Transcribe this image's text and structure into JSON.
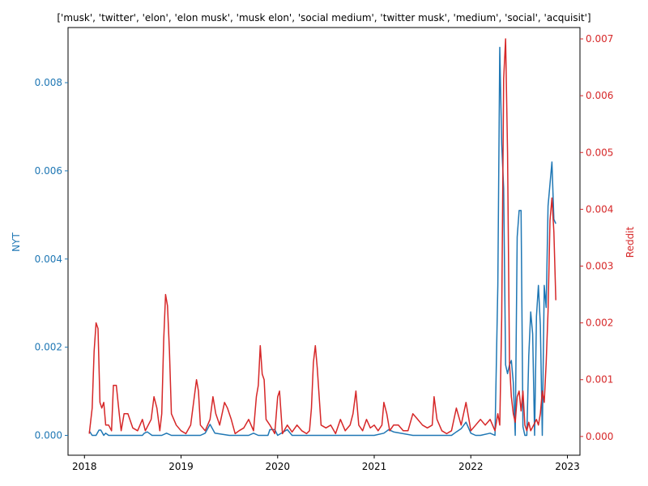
{
  "chart_data": {
    "type": "line",
    "title": "['musk', 'twitter', 'elon', 'elon musk', 'musk elon', 'social medium', 'twitter musk', 'medium', 'social', 'acquisit']",
    "xlabel": "",
    "x_ticks": [
      "2018",
      "2019",
      "2020",
      "2021",
      "2022",
      "2023"
    ],
    "xlim": [
      2017.83,
      2023.13
    ],
    "grid": false,
    "axes": {
      "left": {
        "label": "NYT",
        "color": "#1f77b4",
        "ylim": [
          -0.00045,
          0.00925
        ],
        "ticks": [
          "0.000",
          "0.002",
          "0.004",
          "0.006",
          "0.008"
        ]
      },
      "right": {
        "label": "Reddit",
        "color": "#d62728",
        "ylim": [
          -0.00033,
          0.0072
        ],
        "ticks": [
          "0.000",
          "0.001",
          "0.002",
          "0.003",
          "0.004",
          "0.005",
          "0.006",
          "0.007"
        ]
      }
    },
    "series": [
      {
        "axis": "left",
        "color": "#1f77b4",
        "x": [
          2018.05,
          2018.08,
          2018.12,
          2018.15,
          2018.17,
          2018.2,
          2018.22,
          2018.25,
          2018.3,
          2018.4,
          2018.5,
          2018.6,
          2018.62,
          2018.65,
          2018.7,
          2018.8,
          2018.85,
          2018.9,
          2019.0,
          2019.2,
          2019.25,
          2019.3,
          2019.35,
          2019.5,
          2019.6,
          2019.7,
          2019.75,
          2019.8,
          2019.9,
          2019.92,
          2019.97,
          2020.0,
          2020.1,
          2020.15,
          2020.2,
          2020.3,
          2020.5,
          2020.7,
          2020.9,
          2021.0,
          2021.1,
          2021.15,
          2021.2,
          2021.4,
          2021.5,
          2021.6,
          2021.7,
          2021.8,
          2021.85,
          2021.9,
          2021.95,
          2022.0,
          2022.05,
          2022.1,
          2022.2,
          2022.25,
          2022.28,
          2022.3,
          2022.32,
          2022.34,
          2022.36,
          2022.38,
          2022.4,
          2022.42,
          2022.44,
          2022.46,
          2022.48,
          2022.5,
          2022.52,
          2022.54,
          2022.56,
          2022.58,
          2022.6,
          2022.62,
          2022.64,
          2022.66,
          2022.68,
          2022.7,
          2022.72,
          2022.74,
          2022.76,
          2022.78,
          2022.8,
          2022.82,
          2022.84,
          2022.86,
          2022.88
        ],
        "y": [
          0.0001,
          0.0,
          0.0,
          0.00012,
          0.00012,
          0.0,
          5e-05,
          0.0,
          0.0,
          0.0,
          0.0,
          0.0,
          5e-05,
          8e-05,
          0.0,
          0.0,
          5e-05,
          0.0,
          0.0,
          0.0,
          5e-05,
          0.00025,
          5e-05,
          0.0,
          0.0,
          0.0,
          5e-05,
          0.0,
          0.0,
          0.00013,
          0.00013,
          0.0,
          0.00013,
          0.0,
          0.0,
          0.0,
          0.0,
          0.0,
          0.0,
          0.0,
          5e-05,
          0.00013,
          8e-05,
          0.0,
          0.0,
          0.0,
          0.0,
          0.0,
          8e-05,
          0.00015,
          0.0003,
          5e-05,
          0.0,
          0.0,
          5e-05,
          0.0,
          0.0034,
          0.0088,
          0.0066,
          0.0056,
          0.0016,
          0.0014,
          0.0016,
          0.0017,
          0.0012,
          0.0,
          0.0045,
          0.0051,
          0.0051,
          0.0002,
          0.0,
          0.0,
          0.0018,
          0.0028,
          0.0023,
          0.0,
          0.0027,
          0.0034,
          0.0025,
          0.0,
          0.0034,
          0.0029,
          0.0052,
          0.0057,
          0.0062,
          0.0049,
          0.0048
        ]
      },
      {
        "axis": "right",
        "color": "#d62728",
        "x": [
          2018.05,
          2018.08,
          2018.1,
          2018.12,
          2018.14,
          2018.16,
          2018.18,
          2018.2,
          2018.22,
          2018.25,
          2018.28,
          2018.3,
          2018.33,
          2018.36,
          2018.38,
          2018.41,
          2018.45,
          2018.5,
          2018.55,
          2018.6,
          2018.63,
          2018.66,
          2018.69,
          2018.72,
          2018.75,
          2018.78,
          2018.8,
          2018.82,
          2018.84,
          2018.86,
          2018.88,
          2018.9,
          2018.95,
          2019.0,
          2019.05,
          2019.1,
          2019.13,
          2019.16,
          2019.18,
          2019.2,
          2019.25,
          2019.3,
          2019.33,
          2019.36,
          2019.4,
          2019.45,
          2019.48,
          2019.52,
          2019.56,
          2019.6,
          2019.65,
          2019.7,
          2019.75,
          2019.78,
          2019.8,
          2019.82,
          2019.84,
          2019.86,
          2019.88,
          2019.92,
          2019.97,
          2020.0,
          2020.02,
          2020.05,
          2020.1,
          2020.15,
          2020.2,
          2020.25,
          2020.3,
          2020.33,
          2020.35,
          2020.37,
          2020.39,
          2020.41,
          2020.45,
          2020.5,
          2020.55,
          2020.6,
          2020.65,
          2020.7,
          2020.75,
          2020.78,
          2020.81,
          2020.84,
          2020.88,
          2020.92,
          2020.96,
          2021.0,
          2021.04,
          2021.08,
          2021.1,
          2021.13,
          2021.16,
          2021.2,
          2021.25,
          2021.3,
          2021.35,
          2021.4,
          2021.45,
          2021.5,
          2021.55,
          2021.6,
          2021.62,
          2021.65,
          2021.7,
          2021.75,
          2021.8,
          2021.85,
          2021.9,
          2021.95,
          2022.0,
          2022.05,
          2022.1,
          2022.15,
          2022.2,
          2022.25,
          2022.28,
          2022.3,
          2022.32,
          2022.34,
          2022.36,
          2022.38,
          2022.4,
          2022.42,
          2022.44,
          2022.46,
          2022.48,
          2022.5,
          2022.52,
          2022.54,
          2022.56,
          2022.58,
          2022.6,
          2022.62,
          2022.65,
          2022.68,
          2022.7,
          2022.72,
          2022.74,
          2022.76,
          2022.78,
          2022.8,
          2022.82,
          2022.84,
          2022.86,
          2022.88
        ],
        "y": [
          5e-05,
          0.0005,
          0.0015,
          0.002,
          0.0019,
          0.0006,
          0.0005,
          0.0006,
          0.0002,
          0.0002,
          0.0001,
          0.0009,
          0.0009,
          0.0004,
          0.0001,
          0.0004,
          0.0004,
          0.00015,
          0.0001,
          0.0003,
          0.0001,
          0.0002,
          0.0003,
          0.0007,
          0.0005,
          0.0001,
          0.0004,
          0.0017,
          0.0025,
          0.0023,
          0.0015,
          0.0004,
          0.0002,
          0.0001,
          5e-05,
          0.0002,
          0.0006,
          0.001,
          0.0008,
          0.0002,
          0.0001,
          0.0003,
          0.0007,
          0.0004,
          0.0002,
          0.0006,
          0.0005,
          0.0003,
          5e-05,
          0.0001,
          0.00015,
          0.0003,
          0.0001,
          0.0007,
          0.0009,
          0.0016,
          0.0011,
          0.001,
          0.0003,
          0.0002,
          5e-05,
          0.0007,
          0.0008,
          5e-05,
          0.0002,
          8e-05,
          0.0002,
          0.0001,
          5e-05,
          0.0001,
          0.0005,
          0.0013,
          0.0016,
          0.0012,
          0.0002,
          0.00015,
          0.0002,
          5e-05,
          0.0003,
          0.0001,
          0.0002,
          0.0004,
          0.0008,
          0.0002,
          0.0001,
          0.0003,
          0.00015,
          0.0002,
          0.0001,
          0.0002,
          0.0006,
          0.0004,
          0.0001,
          0.0002,
          0.0002,
          0.0001,
          0.0001,
          0.0004,
          0.0003,
          0.0002,
          0.00015,
          0.0002,
          0.0007,
          0.0003,
          0.0001,
          5e-05,
          0.0001,
          0.0005,
          0.0002,
          0.0006,
          0.0001,
          0.0002,
          0.0003,
          0.0002,
          0.0003,
          0.0001,
          0.0004,
          0.0002,
          0.0021,
          0.0063,
          0.007,
          0.005,
          0.0013,
          0.0007,
          0.0004,
          0.00025,
          0.0007,
          0.0008,
          0.00045,
          0.0008,
          0.0002,
          0.0001,
          0.00025,
          0.0001,
          0.0002,
          0.0003,
          0.0002,
          0.0004,
          0.0008,
          0.0006,
          0.0013,
          0.0022,
          0.0038,
          0.0042,
          0.0036,
          0.0024
        ]
      }
    ]
  }
}
